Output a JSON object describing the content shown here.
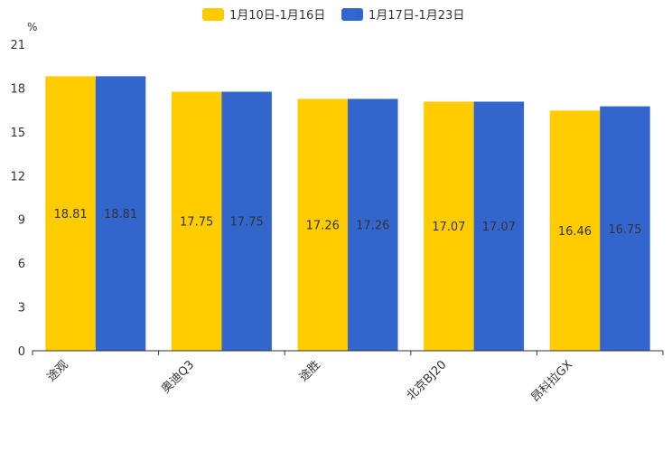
{
  "chart_data": {
    "type": "bar",
    "title": "",
    "xlabel": "",
    "ylabel": "%",
    "ylim": [
      0,
      21
    ],
    "yticks": [
      0,
      3,
      6,
      9,
      12,
      15,
      18,
      21
    ],
    "grid": false,
    "legend_position": "top-center",
    "categories": [
      "途观",
      "奥迪Q3",
      "途胜",
      "北京BJ20",
      "昂科拉GX"
    ],
    "series": [
      {
        "name": "1月10日-1月16日",
        "color": "#FFCC00",
        "values": [
          18.81,
          17.75,
          17.26,
          17.07,
          16.46
        ]
      },
      {
        "name": "1月17日-1月23日",
        "color": "#3366CC",
        "values": [
          18.81,
          17.75,
          17.26,
          17.07,
          16.75
        ]
      }
    ]
  }
}
